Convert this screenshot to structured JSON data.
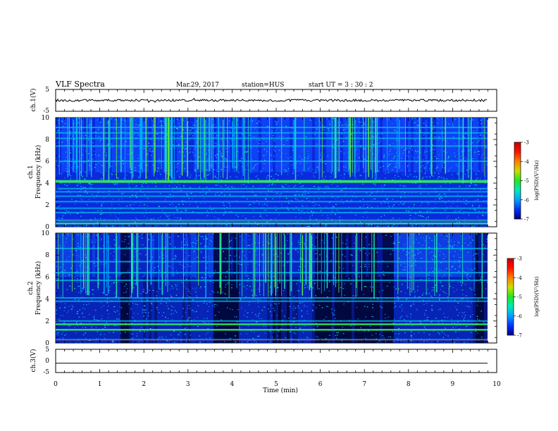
{
  "header": {
    "title": "VLF Spectra",
    "date": "Mar.29, 2017",
    "station": "station=HUS",
    "start": "start  UT =   3 : 30 : 2"
  },
  "chart_data": [
    {
      "type": "line",
      "panel": "ch1-waveform",
      "ylabel": "ch.1(V)",
      "ylim": [
        -5,
        5
      ],
      "yticks": [
        "5",
        "-5"
      ],
      "series": [
        {
          "values": [
            0.0
          ]
        }
      ]
    },
    {
      "type": "heatmap",
      "panel": "ch1-spectrogram",
      "ylabel_line1": "ch.1",
      "ylabel_line2": "Frequency  (kHz)",
      "ylim": [
        0,
        10
      ],
      "yticks": [
        "0",
        "2",
        "4",
        "6",
        "8",
        "10"
      ],
      "xlim": [
        0,
        10
      ],
      "hum_bands_khz": [
        0.3,
        0.6,
        1.3,
        1.7,
        2.3,
        2.8,
        3.2,
        3.5,
        4.1,
        4.2,
        6.0,
        7.4,
        8.1,
        8.6,
        9.1
      ],
      "colorbar": {
        "label": "log(PSD)(V²/Hz)",
        "range": [
          -7,
          -3
        ],
        "ticks": [
          "-3",
          "-4",
          "-5",
          "-6",
          "-7"
        ],
        "colors": [
          "#000080",
          "#0030ff",
          "#00a0ff",
          "#00e8c0",
          "#20e820",
          "#c8e000",
          "#ff8000",
          "#ff1000",
          "#c00000"
        ]
      }
    },
    {
      "type": "heatmap",
      "panel": "ch2-spectrogram",
      "ylabel_line1": "ch.2",
      "ylabel_line2": "Frequency  (kHz)",
      "ylim": [
        0,
        10
      ],
      "yticks": [
        "0",
        "2",
        "4",
        "6",
        "8",
        "10"
      ],
      "xlim": [
        0,
        10
      ],
      "hum_bands_khz": [
        0.3,
        1.2,
        1.7,
        2.0,
        3.8,
        4.1,
        5.7,
        6.4,
        7.4,
        8.6
      ],
      "colorbar": {
        "label": "log(PSD)(V²/Hz)",
        "range": [
          -7,
          -3
        ],
        "ticks": [
          "-3",
          "-4",
          "-5",
          "-6",
          "-7"
        ],
        "colors": [
          "#000080",
          "#0030ff",
          "#00a0ff",
          "#00e8c0",
          "#20e820",
          "#c8e000",
          "#ff8000",
          "#ff1000",
          "#c00000"
        ]
      }
    },
    {
      "type": "line",
      "panel": "ch3-waveform",
      "ylabel": "ch.3(V)",
      "ylim": [
        -5,
        5
      ],
      "yticks": [
        "5",
        "0",
        "-5"
      ],
      "series": [
        {
          "values": [
            -1.0
          ]
        }
      ]
    }
  ],
  "xaxis": {
    "label": "Time  (min)",
    "range": [
      0,
      10
    ],
    "ticks": [
      "0",
      "1",
      "2",
      "3",
      "4",
      "5",
      "6",
      "7",
      "8",
      "9",
      "10"
    ]
  }
}
